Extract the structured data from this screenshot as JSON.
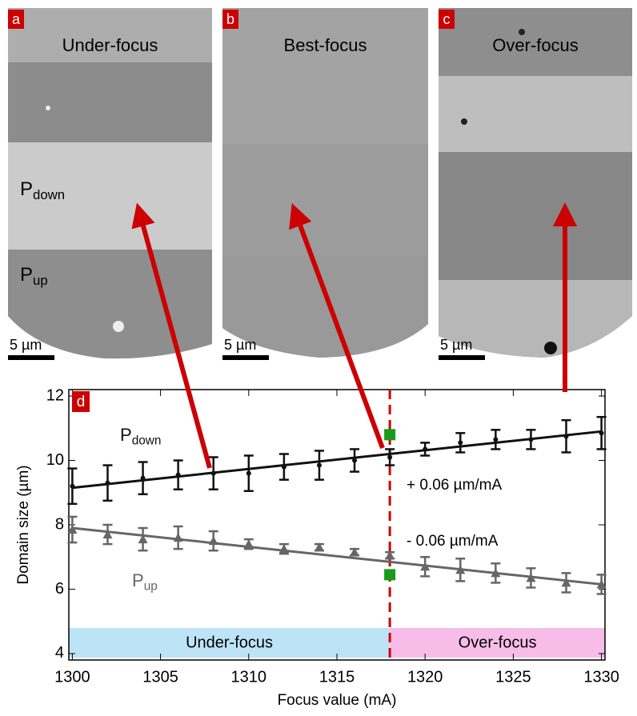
{
  "panels": [
    {
      "label": "a",
      "title": "Under-focus",
      "scale": "5 µm",
      "labels": [
        {
          "main": "P",
          "sub": "down"
        },
        {
          "main": "P",
          "sub": "up"
        }
      ]
    },
    {
      "label": "b",
      "title": "Best-focus",
      "scale": "5 µm"
    },
    {
      "label": "c",
      "title": "Over-focus",
      "scale": "5 µm"
    }
  ],
  "chart_data": {
    "type": "errorbar",
    "label": "d",
    "xlabel": "Focus value (mA)",
    "ylabel": "Domain size (µm)",
    "xlim": [
      1299.8,
      1330.2
    ],
    "ylim": [
      3.8,
      12.2
    ],
    "xticks": [
      1300,
      1305,
      1310,
      1315,
      1320,
      1325,
      1330
    ],
    "yticks": [
      4,
      6,
      8,
      10,
      12
    ],
    "x": [
      1300,
      1302,
      1304,
      1306,
      1308,
      1310,
      1312,
      1314,
      1316,
      1318,
      1320,
      1322,
      1324,
      1326,
      1328,
      1330
    ],
    "series": [
      {
        "label_main": "P",
        "label_sub": "down",
        "color": "#111111",
        "marker": "circle",
        "values": [
          9.2,
          9.3,
          9.45,
          9.55,
          9.6,
          9.6,
          9.8,
          9.85,
          10.0,
          10.1,
          10.35,
          10.55,
          10.65,
          10.65,
          10.75,
          10.85
        ],
        "errors": [
          0.55,
          0.55,
          0.5,
          0.45,
          0.5,
          0.55,
          0.4,
          0.45,
          0.35,
          0.25,
          0.2,
          0.3,
          0.3,
          0.3,
          0.5,
          0.5
        ],
        "fit_x": [
          1300,
          1330
        ],
        "fit": [
          9.15,
          10.9
        ],
        "slope_label": "+ 0.06 µm/mA"
      },
      {
        "label_main": "P",
        "label_sub": "up",
        "color": "#666666",
        "marker": "triangle",
        "values": [
          7.85,
          7.7,
          7.55,
          7.6,
          7.5,
          7.4,
          7.25,
          7.3,
          7.15,
          7.05,
          6.7,
          6.6,
          6.5,
          6.35,
          6.2,
          6.15
        ],
        "errors": [
          0.4,
          0.3,
          0.35,
          0.35,
          0.3,
          0.15,
          0.15,
          0.1,
          0.1,
          0.1,
          0.3,
          0.35,
          0.3,
          0.3,
          0.3,
          0.3
        ],
        "fit_x": [
          1300,
          1330
        ],
        "fit": [
          7.9,
          6.15
        ],
        "slope_label": "- 0.06 µm/mA"
      }
    ],
    "best_focus": 1318,
    "markers": {
      "x": [
        1318,
        1318
      ],
      "values": [
        10.8,
        6.45
      ],
      "color": "#1a9a1a"
    },
    "regions": [
      {
        "label": "Under-focus",
        "from": 1299.8,
        "to": 1318,
        "color": "#bde3f7"
      },
      {
        "label": "Over-focus",
        "from": 1318,
        "to": 1330.2,
        "color": "#f7bde8"
      }
    ]
  }
}
